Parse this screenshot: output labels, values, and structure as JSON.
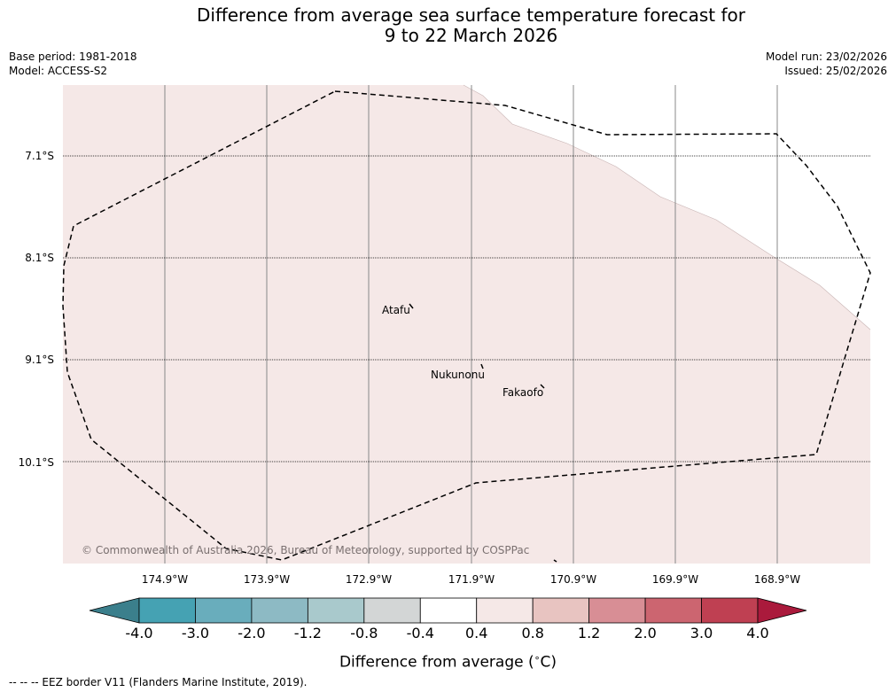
{
  "title_line1": "Difference from average sea surface temperature forecast for",
  "title_line2": "9 to 22 March 2026",
  "base_period": "Base period: 1981-2018",
  "model": "Model: ACCESS-S2",
  "model_run": "Model run: 23/02/2026",
  "issued": "Issued: 25/02/2026",
  "map": {
    "latitudes": [
      "7.1°S",
      "8.1°S",
      "9.1°S",
      "10.1°S"
    ],
    "longitudes": [
      "174.9°W",
      "173.9°W",
      "172.9°W",
      "171.9°W",
      "170.9°W",
      "169.9°W",
      "168.9°W"
    ],
    "places": [
      "Atafu",
      "Nukunonu",
      "Fakaofo"
    ],
    "copyright": "© Commonwealth of Australia 2026, Bureau of Meteorology, supported by COSPPac",
    "field_color": "#f5e8e7",
    "boundary": "EEZ border"
  },
  "colorbar": {
    "ticks": [
      "-4.0",
      "-3.0",
      "-2.0",
      "-1.2",
      "-0.8",
      "-0.4",
      "0.4",
      "0.8",
      "1.2",
      "2.0",
      "3.0",
      "4.0"
    ],
    "colors": [
      "#45a2b3",
      "#69adbc",
      "#8dbac4",
      "#a9c9cc",
      "#d3d6d6",
      "#ffffff",
      "#f5e8e7",
      "#e8c4c1",
      "#d88e95",
      "#cc6570",
      "#bf4052"
    ],
    "under_color": "#3b7f8c",
    "over_color": "#aa1a3c",
    "label": "Difference from average (",
    "label_unit": "C)",
    "label_degree": "∘"
  },
  "footer": "--  --  -- EEZ border V11 (Flanders Marine Institute, 2019)."
}
